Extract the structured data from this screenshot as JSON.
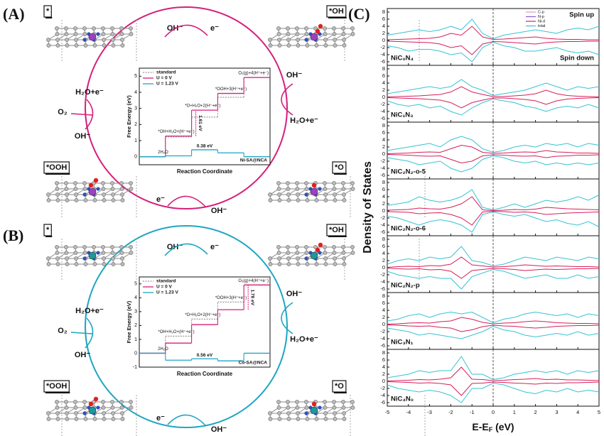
{
  "figure": {
    "panel_labels": [
      "(A)",
      "(B)",
      "(C)"
    ],
    "cycles": [
      {
        "color": "#d61f7a",
        "metal": "#a040c0",
        "states": [
          "*",
          "*OH",
          "*O",
          "*OOH"
        ],
        "species": [
          "OH⁻",
          "e⁻",
          "OH⁻",
          "H₂O+e⁻",
          "OH⁻",
          "e⁻",
          "H₂O+e⁻",
          "O₂",
          "OH⁻"
        ]
      },
      {
        "color": "#1ea6c0",
        "metal": "#1a9a9a",
        "states": [
          "*",
          "*OH",
          "*O",
          "*OOH"
        ],
        "species": [
          "OH⁻",
          "e⁻",
          "OH⁻",
          "H₂O+e⁻",
          "OH⁻",
          "e⁻",
          "H₂O+e⁻",
          "O₂",
          "OH⁻"
        ]
      }
    ]
  },
  "chart_data": [
    {
      "type": "step",
      "model": "Ni-SA@NCA",
      "x_label": "Reaction Coordinate",
      "y_label": "Free Energy (eV)",
      "categories": [
        "2H₂O",
        "*OH+H₂O+(H⁺+e⁻)",
        "*O+H₂O+2(H⁺+e⁻)",
        "*OOH+3(H⁺+e⁻)",
        "O₂(g)+4(H⁺+e⁻)"
      ],
      "ylim": [
        -0.5,
        5.5
      ],
      "yticks": [
        0,
        1,
        2,
        3,
        4,
        5
      ],
      "series": [
        {
          "name": "standard",
          "color": "#9a9a9a",
          "values": [
            0,
            1.23,
            2.46,
            3.69,
            4.92
          ]
        },
        {
          "name": "U = 0 V",
          "color": "#d61f7a",
          "values": [
            0,
            1.28,
            2.89,
            3.93,
            4.92
          ]
        },
        {
          "name": "U = 1.23 V",
          "color": "#1ea6c0",
          "values": [
            0,
            0.05,
            0.43,
            0.24,
            0
          ]
        }
      ],
      "gap_labels": [
        "1.61 eV",
        "0.38 eV"
      ]
    },
    {
      "type": "step",
      "model": "Co-SA@NCA",
      "x_label": "Reaction Coordinate",
      "y_label": "Free Energy (eV)",
      "categories": [
        "2H₂O",
        "*OH+H₂O+(H⁺+e⁻)",
        "*O+H₂O+2(H⁺+e⁻)",
        "*OOH+3(H⁺+e⁻)",
        "O₂(g)+4(H⁺+e⁻)"
      ],
      "ylim": [
        -1,
        5.5
      ],
      "yticks": [
        -1,
        0,
        1,
        2,
        3,
        4,
        5
      ],
      "series": [
        {
          "name": "standard",
          "color": "#9a9a9a",
          "values": [
            0,
            1.23,
            2.46,
            3.69,
            4.92
          ]
        },
        {
          "name": "U = 0 V",
          "color": "#d61f7a",
          "values": [
            0,
            0.73,
            2.06,
            3.14,
            4.92
          ]
        },
        {
          "name": "U = 1.23 V",
          "color": "#1ea6c0",
          "values": [
            0,
            -0.5,
            -0.4,
            -0.55,
            0
          ]
        }
      ],
      "gap_labels": [
        "1.78 eV",
        "0.56 eV"
      ]
    },
    {
      "type": "dos",
      "y_label": "Density of States",
      "x_label": [
        "E-E",
        "F",
        " (eV)"
      ],
      "xlim": [
        -5,
        5
      ],
      "xticks": [
        -5,
        -4,
        -3,
        -2,
        -1,
        0,
        1,
        2,
        3,
        4,
        5
      ],
      "ylim": [
        -7,
        9
      ],
      "yticks": [
        -6,
        -4,
        -2,
        0,
        2,
        4,
        6,
        8
      ],
      "annotations": [
        "Spin up",
        "Spin down"
      ],
      "legend": [
        {
          "name": "C-p",
          "color": "#f08cc0"
        },
        {
          "name": "N-p",
          "color": "#7a5fd0"
        },
        {
          "name": "Ni-d",
          "color": "#d61f5a"
        },
        {
          "name": "total",
          "color": "#35c3d6"
        }
      ],
      "x": [
        -5,
        -4.5,
        -4,
        -3.5,
        -3,
        -2.5,
        -2,
        -1.5,
        -1,
        -0.5,
        0,
        0.5,
        1,
        1.5,
        2,
        2.5,
        3,
        3.5,
        4,
        4.5,
        5
      ],
      "panels": [
        {
          "label": "NiC₀N₄",
          "total_up": [
            1.5,
            2,
            2.5,
            3,
            2.5,
            3,
            4,
            3,
            6,
            2,
            0.5,
            1.5,
            2,
            2.5,
            3,
            2.5,
            2,
            3,
            3.5,
            3,
            4
          ],
          "total_down": [
            -1.5,
            -2,
            -3,
            -2.5,
            -2.5,
            -3,
            -4,
            -3.5,
            -6,
            -2,
            -0.5,
            -1.5,
            -2,
            -3,
            -3,
            -2.5,
            -2,
            -3,
            -3.5,
            -3,
            -4
          ],
          "ni_d_up": [
            0.2,
            0.3,
            0.4,
            0.5,
            0.6,
            1,
            2,
            1.5,
            4,
            1,
            0.3,
            0.4,
            0.6,
            0.8,
            1,
            0.6,
            0.4,
            0.3,
            0.3,
            0.2,
            0.2
          ],
          "ni_d_down": [
            -0.2,
            -0.3,
            -0.4,
            -0.5,
            -0.6,
            -1,
            -2,
            -1.5,
            -4,
            -1,
            -0.3,
            -0.4,
            -0.6,
            -0.8,
            -1,
            -0.6,
            -0.4,
            -0.3,
            -0.3,
            -0.2,
            -0.2
          ]
        },
        {
          "label": "NiC₁N₃",
          "total_up": [
            1,
            1.5,
            2,
            2.5,
            3,
            2.5,
            3,
            5,
            3,
            2,
            0.5,
            1,
            1.5,
            2,
            3,
            4,
            3,
            2,
            3,
            2.5,
            3
          ],
          "total_down": [
            -1,
            -2,
            -2.5,
            -2,
            -3,
            -2.5,
            -4,
            -5,
            -3,
            -1.5,
            -0.5,
            -1,
            -1.5,
            -2.5,
            -3,
            -4,
            -3,
            -2.5,
            -3,
            -2,
            -3
          ],
          "ni_d_up": [
            0.1,
            0.2,
            0.3,
            0.4,
            0.6,
            0.8,
            1.5,
            3,
            1.5,
            0.8,
            0.2,
            0.2,
            0.4,
            0.6,
            1,
            2,
            1,
            0.5,
            0.3,
            0.2,
            0.1
          ],
          "ni_d_down": [
            -0.1,
            -0.2,
            -0.3,
            -0.4,
            -0.6,
            -0.8,
            -1.5,
            -3,
            -1.5,
            -0.8,
            -0.2,
            -0.2,
            -0.4,
            -0.6,
            -1,
            -2,
            -1,
            -0.5,
            -0.3,
            -0.2,
            -0.1
          ]
        },
        {
          "label": "NiC₂N₂-o-5",
          "total_up": [
            1,
            1.5,
            2,
            2.5,
            3,
            2,
            4,
            5,
            4,
            1.5,
            0.5,
            1,
            2,
            2.5,
            2,
            3,
            2.5,
            3,
            2,
            3,
            2.5
          ],
          "total_down": [
            -1,
            -1.5,
            -2,
            -3,
            -2.5,
            -2,
            -4,
            -5,
            -4,
            -1.5,
            -0.5,
            -1,
            -2,
            -2.5,
            -2,
            -3,
            -2.5,
            -3,
            -2.5,
            -3,
            -2.5
          ],
          "ni_d_up": [
            0.1,
            0.2,
            0.3,
            0.5,
            0.6,
            0.5,
            1.5,
            2.5,
            2,
            0.5,
            0.2,
            0.3,
            0.5,
            0.6,
            0.5,
            1,
            0.6,
            0.5,
            0.3,
            0.3,
            0.2
          ],
          "ni_d_down": [
            -0.1,
            -0.2,
            -0.3,
            -0.5,
            -0.6,
            -0.5,
            -1.5,
            -2.5,
            -2,
            -0.5,
            -0.2,
            -0.3,
            -0.5,
            -0.6,
            -0.5,
            -1,
            -0.6,
            -0.5,
            -0.3,
            -0.3,
            -0.2
          ]
        },
        {
          "label": "NiC₂N₂-o-6",
          "total_up": [
            1.5,
            2,
            2.5,
            4,
            3,
            2.5,
            3,
            4,
            6,
            1,
            0.3,
            1,
            2,
            1,
            2,
            3,
            2.5,
            3,
            4,
            3,
            4.5
          ],
          "total_down": [
            -1.5,
            -2,
            -3,
            -4,
            -3,
            -2.5,
            -3,
            -4,
            -6,
            -1,
            -0.3,
            -1,
            -1.5,
            -1,
            -2,
            -3,
            -2.5,
            -3.5,
            -4,
            -3,
            -4.5
          ],
          "ni_d_up": [
            0.2,
            0.3,
            0.4,
            0.8,
            0.6,
            0.5,
            1,
            2,
            4,
            0.3,
            0.1,
            0.2,
            0.4,
            0.3,
            0.5,
            1,
            0.8,
            0.6,
            0.5,
            0.4,
            0.3
          ],
          "ni_d_down": [
            -0.2,
            -0.3,
            -0.4,
            -0.8,
            -0.6,
            -0.5,
            -1,
            -2,
            -4,
            -0.3,
            -0.1,
            -0.2,
            -0.4,
            -0.3,
            -0.5,
            -1,
            -0.8,
            -0.6,
            -0.5,
            -0.4,
            -0.3
          ]
        },
        {
          "label": "NiC₂N₂-p",
          "total_up": [
            1,
            2,
            2.5,
            2,
            3,
            2.5,
            3,
            6,
            2,
            1.5,
            0.5,
            1,
            2,
            3,
            2.5,
            2,
            3,
            2.5,
            2,
            3,
            2.5
          ],
          "total_down": [
            -1,
            -2,
            -2.5,
            -3,
            -2.5,
            -3,
            -3,
            -6,
            -2.5,
            -1.5,
            -0.5,
            -1,
            -2,
            -3,
            -2.5,
            -2,
            -3,
            -3,
            -2,
            -3,
            -2.5
          ],
          "ni_d_up": [
            0.1,
            0.3,
            0.4,
            0.3,
            0.6,
            0.5,
            1,
            3,
            0.8,
            0.5,
            0.2,
            0.3,
            0.5,
            0.8,
            0.6,
            0.4,
            0.5,
            0.4,
            0.3,
            0.3,
            0.2
          ],
          "ni_d_down": [
            -0.1,
            -0.3,
            -0.4,
            -0.3,
            -0.6,
            -0.5,
            -1,
            -3,
            -0.8,
            -0.5,
            -0.2,
            -0.3,
            -0.5,
            -0.8,
            -0.6,
            -0.4,
            -0.5,
            -0.4,
            -0.3,
            -0.3,
            -0.2
          ]
        },
        {
          "label": "NiC₃N₁",
          "total_up": [
            1,
            1.5,
            2.5,
            3,
            2,
            3,
            3.5,
            3,
            3.5,
            2,
            0.5,
            1.5,
            2,
            3,
            3.5,
            3,
            2.5,
            3,
            2,
            3,
            2.5
          ],
          "total_down": [
            -1,
            -1.5,
            -2,
            -3,
            -2.5,
            -3,
            -3.5,
            -4,
            -3,
            -2,
            -0.5,
            -1.5,
            -2,
            -3,
            -3.5,
            -3,
            -2.5,
            -3,
            -2,
            -3,
            -2.5
          ],
          "ni_d_up": [
            0.1,
            0.2,
            0.4,
            0.5,
            0.4,
            0.8,
            1,
            2,
            1.5,
            0.6,
            0.2,
            0.4,
            0.5,
            0.8,
            1,
            0.8,
            0.5,
            0.4,
            0.3,
            0.3,
            0.2
          ],
          "ni_d_down": [
            -0.1,
            -0.2,
            -0.4,
            -0.5,
            -0.4,
            -0.8,
            -1,
            -2,
            -1.5,
            -0.6,
            -0.2,
            -0.4,
            -0.5,
            -0.8,
            -1,
            -0.8,
            -0.5,
            -0.4,
            -0.3,
            -0.3,
            -0.2
          ]
        },
        {
          "label": "NiC₄N₀",
          "total_up": [
            1,
            1.5,
            2,
            3,
            2.5,
            3,
            3,
            7,
            2,
            2,
            0.5,
            1,
            2,
            2.5,
            3,
            2.5,
            3,
            2,
            3,
            2.5,
            3
          ],
          "total_down": [
            -1,
            -2,
            -2.5,
            -3,
            -2.5,
            -3,
            -4,
            -6,
            -2,
            -2,
            -0.5,
            -1,
            -2,
            -3,
            -3.5,
            -2.5,
            -3,
            -2,
            -3,
            -2.5,
            -3
          ],
          "ni_d_up": [
            0.1,
            0.2,
            0.3,
            0.5,
            0.4,
            0.6,
            1,
            4,
            0.6,
            0.5,
            0.2,
            0.3,
            0.5,
            0.6,
            0.8,
            0.5,
            0.6,
            0.4,
            0.4,
            0.3,
            0.2
          ],
          "ni_d_down": [
            -0.1,
            -0.2,
            -0.3,
            -0.5,
            -0.4,
            -0.6,
            -1,
            -4,
            -0.6,
            -0.5,
            -0.2,
            -0.3,
            -0.5,
            -0.6,
            -0.8,
            -0.5,
            -0.6,
            -0.4,
            -0.4,
            -0.3,
            -0.2
          ]
        }
      ]
    }
  ]
}
